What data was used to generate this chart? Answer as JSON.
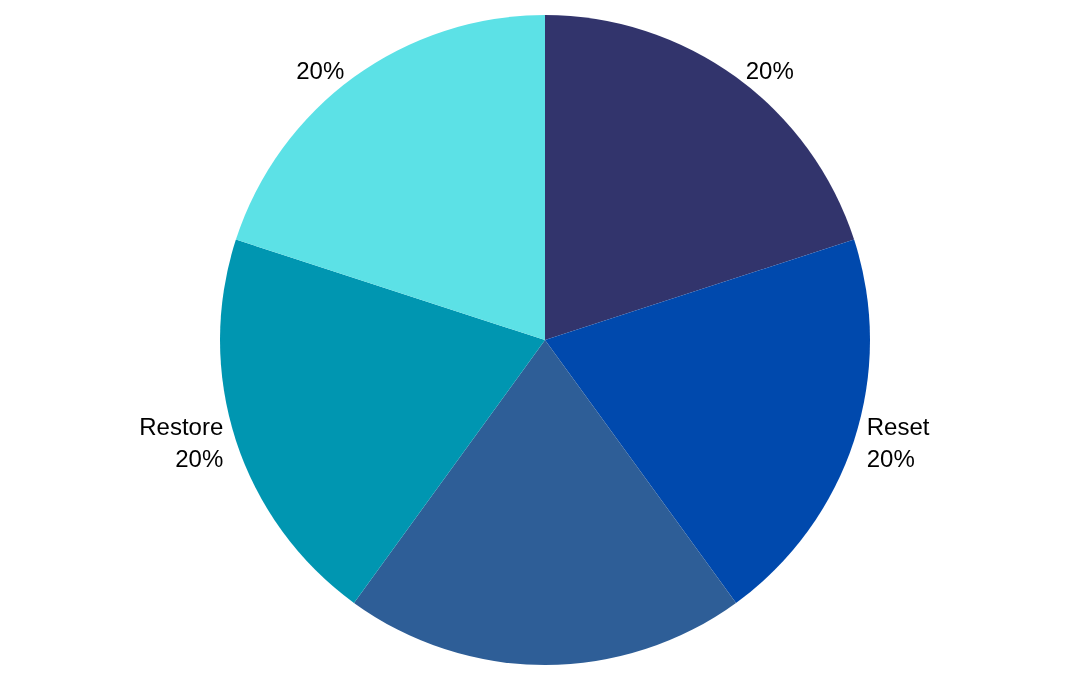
{
  "chart_data": {
    "type": "pie",
    "categories": [
      null,
      "Reset",
      null,
      "Restore",
      null
    ],
    "values": [
      20,
      20,
      20,
      20,
      20
    ],
    "value_labels": [
      "20%",
      "20%",
      null,
      "20%",
      "20%"
    ],
    "colors": [
      "#32346c",
      "#0049ad",
      "#2e5e97",
      "#0096b1",
      "#5ce1e6"
    ],
    "legend": false
  }
}
